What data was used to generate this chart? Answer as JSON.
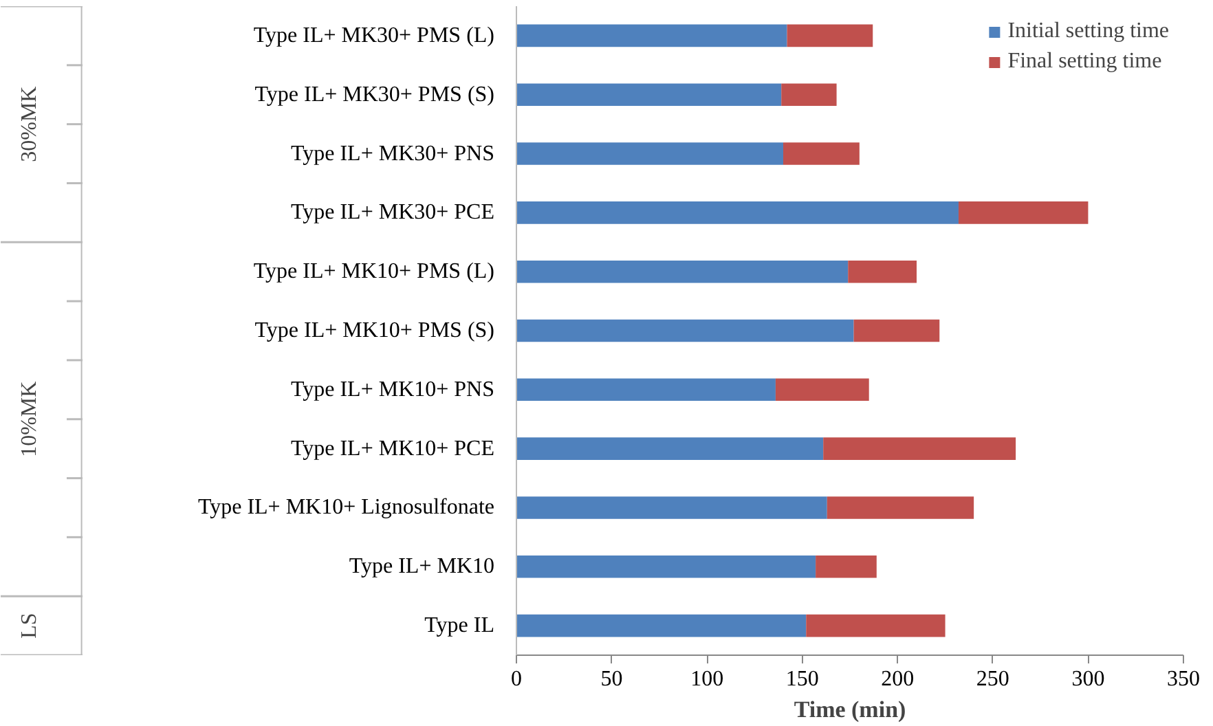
{
  "chart_data": {
    "type": "bar",
    "orientation": "horizontal",
    "stacked": true,
    "xlabel": "Time (min)",
    "categories": [
      "Type IL+ MK30+ PMS (L)",
      "Type IL+ MK30+ PMS (S)",
      "Type IL+ MK30+ PNS",
      "Type IL+ MK30+ PCE",
      "Type IL+ MK10+ PMS (L)",
      "Type IL+ MK10+ PMS (S)",
      "Type IL+ MK10+ PNS",
      "Type IL+ MK10+ PCE",
      "Type IL+ MK10+ Lignosulfonate",
      "Type IL+ MK10",
      "Type IL"
    ],
    "series": [
      {
        "name": "Initial setting time",
        "color": "#4f81bd",
        "values": [
          142,
          139,
          140,
          232,
          174,
          177,
          136,
          161,
          163,
          157,
          152
        ]
      },
      {
        "name": "Final setting time",
        "color": "#c0504d",
        "values": [
          45,
          29,
          40,
          68,
          36,
          45,
          49,
          101,
          77,
          32,
          73
        ]
      }
    ],
    "annotations": [
      "30%MK",
      "10%MK",
      "LS"
    ],
    "xlim": [
      0,
      350
    ],
    "xticks": [
      0,
      50,
      100,
      150,
      200,
      250,
      300,
      350
    ],
    "grid": false,
    "legend": "top right"
  }
}
